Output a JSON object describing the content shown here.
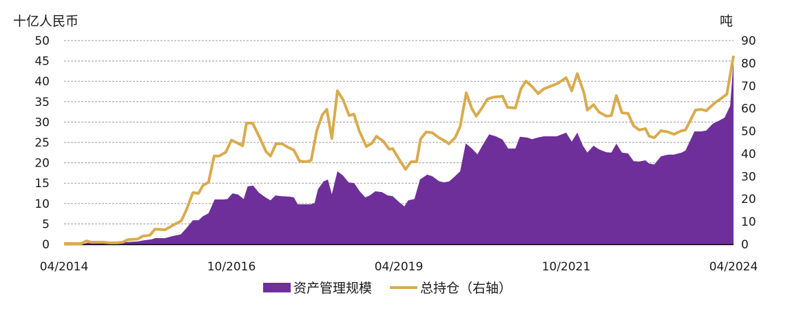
{
  "chart_data": {
    "type": "area+line",
    "title": "",
    "left_axis": {
      "unit_label": "十亿人民币",
      "ticks": [
        0,
        5,
        10,
        15,
        20,
        25,
        30,
        35,
        40,
        45,
        50
      ],
      "ylim": [
        0,
        50
      ]
    },
    "right_axis": {
      "unit_label": "吨",
      "ticks": [
        0,
        10,
        20,
        30,
        40,
        50,
        60,
        70,
        80,
        90
      ],
      "ylim": [
        0,
        90
      ]
    },
    "x_axis": {
      "tick_labels": [
        "04/2014",
        "10/2016",
        "04/2019",
        "10/2021",
        "04/2024"
      ],
      "tick_positions": [
        0,
        30,
        60,
        90,
        120
      ],
      "range": [
        0,
        120
      ]
    },
    "grid": "horizontal dashed",
    "legend": {
      "position": "bottom"
    },
    "series": [
      {
        "name": "资产管理规模",
        "type": "area",
        "axis": "left",
        "color": "#6E2F9B",
        "points": [
          [
            0,
            0
          ],
          [
            3.3,
            0
          ],
          [
            4.6,
            0.5
          ],
          [
            9.5,
            0.3
          ],
          [
            10.7,
            0.5
          ],
          [
            13.2,
            0.7
          ],
          [
            14.4,
            1.0
          ],
          [
            15.7,
            1.2
          ],
          [
            16.3,
            1.5
          ],
          [
            18.1,
            1.5
          ],
          [
            19.4,
            2.0
          ],
          [
            20.9,
            2.4
          ],
          [
            21.9,
            3.9
          ],
          [
            23.1,
            5.9
          ],
          [
            24.1,
            5.9
          ],
          [
            24.9,
            6.9
          ],
          [
            25.9,
            7.6
          ],
          [
            27.0,
            11.0
          ],
          [
            28.6,
            11.0
          ],
          [
            29.3,
            11.1
          ],
          [
            30.2,
            12.5
          ],
          [
            31.2,
            12.2
          ],
          [
            32.2,
            11.1
          ],
          [
            32.9,
            14.2
          ],
          [
            33.9,
            14.4
          ],
          [
            34.9,
            12.7
          ],
          [
            35.9,
            11.7
          ],
          [
            37.0,
            10.8
          ],
          [
            37.9,
            12.0
          ],
          [
            38.9,
            11.8
          ],
          [
            40.4,
            11.7
          ],
          [
            41.2,
            11.5
          ],
          [
            41.9,
            9.8
          ],
          [
            42.8,
            9.8
          ],
          [
            44.1,
            9.8
          ],
          [
            44.9,
            10.1
          ],
          [
            45.5,
            13.5
          ],
          [
            46.5,
            15.4
          ],
          [
            47.3,
            15.9
          ],
          [
            48.0,
            12.3
          ],
          [
            49.0,
            17.9
          ],
          [
            50.0,
            16.9
          ],
          [
            51.0,
            15.2
          ],
          [
            52.0,
            15.0
          ],
          [
            53.0,
            13.0
          ],
          [
            54.0,
            11.5
          ],
          [
            54.8,
            12.0
          ],
          [
            55.8,
            13.0
          ],
          [
            57.0,
            12.8
          ],
          [
            58.0,
            12.0
          ],
          [
            58.9,
            11.8
          ],
          [
            60.1,
            10.3
          ],
          [
            61.0,
            9.3
          ],
          [
            61.7,
            10.8
          ],
          [
            62.8,
            11.1
          ],
          [
            63.8,
            15.9
          ],
          [
            65.1,
            17.1
          ],
          [
            66.0,
            16.7
          ],
          [
            67.2,
            15.5
          ],
          [
            68.1,
            15.2
          ],
          [
            69.0,
            15.4
          ],
          [
            70.0,
            16.6
          ],
          [
            71.0,
            17.9
          ],
          [
            72.0,
            24.8
          ],
          [
            73.1,
            23.5
          ],
          [
            74.1,
            22.1
          ],
          [
            75.1,
            24.5
          ],
          [
            76.2,
            27.0
          ],
          [
            77.4,
            26.5
          ],
          [
            78.6,
            25.7
          ],
          [
            79.6,
            23.5
          ],
          [
            80.9,
            23.5
          ],
          [
            81.7,
            26.4
          ],
          [
            83.0,
            26.2
          ],
          [
            83.9,
            25.8
          ],
          [
            84.9,
            26.2
          ],
          [
            86.0,
            26.5
          ],
          [
            87.3,
            26.5
          ],
          [
            88.3,
            26.5
          ],
          [
            90.0,
            27.4
          ],
          [
            91.0,
            25.2
          ],
          [
            92.0,
            27.4
          ],
          [
            93.0,
            24.2
          ],
          [
            93.8,
            22.5
          ],
          [
            94.9,
            24.2
          ],
          [
            95.9,
            23.3
          ],
          [
            97.2,
            22.6
          ],
          [
            98.1,
            22.5
          ],
          [
            99.0,
            24.7
          ],
          [
            100.0,
            22.5
          ],
          [
            101.1,
            22.3
          ],
          [
            102.1,
            20.4
          ],
          [
            103.1,
            20.3
          ],
          [
            104.2,
            20.6
          ],
          [
            104.9,
            19.8
          ],
          [
            105.8,
            19.6
          ],
          [
            107.0,
            21.6
          ],
          [
            108.3,
            22.0
          ],
          [
            109.3,
            22.0
          ],
          [
            110.7,
            22.5
          ],
          [
            111.4,
            23.0
          ],
          [
            113.0,
            27.7
          ],
          [
            114.2,
            27.7
          ],
          [
            115.1,
            27.9
          ],
          [
            116.3,
            29.6
          ],
          [
            117.5,
            30.4
          ],
          [
            118.4,
            31.1
          ],
          [
            119.4,
            34.0
          ],
          [
            120,
            45.1
          ]
        ]
      },
      {
        "name": "总持仓（右轴）",
        "type": "line",
        "axis": "right",
        "color": "#D9AB4E",
        "points": [
          [
            0,
            0.3
          ],
          [
            3.1,
            0.3
          ],
          [
            4.0,
            1.5
          ],
          [
            4.9,
            0.9
          ],
          [
            7.0,
            0.9
          ],
          [
            8.2,
            0.6
          ],
          [
            9.5,
            0.6
          ],
          [
            10.5,
            0.9
          ],
          [
            11.4,
            2.0
          ],
          [
            13.2,
            2.3
          ],
          [
            14.1,
            3.6
          ],
          [
            15.4,
            4.0
          ],
          [
            16.3,
            6.7
          ],
          [
            18.1,
            6.4
          ],
          [
            19.8,
            8.8
          ],
          [
            21.0,
            10.3
          ],
          [
            21.9,
            15.0
          ],
          [
            23.1,
            22.8
          ],
          [
            24.1,
            22.5
          ],
          [
            24.9,
            26.0
          ],
          [
            25.9,
            27.4
          ],
          [
            26.9,
            39.0
          ],
          [
            27.8,
            39.0
          ],
          [
            29.0,
            40.7
          ],
          [
            30.0,
            46.0
          ],
          [
            31.1,
            44.7
          ],
          [
            32.0,
            43.5
          ],
          [
            32.7,
            53.5
          ],
          [
            33.8,
            53.5
          ],
          [
            35.2,
            46.5
          ],
          [
            36.2,
            41.0
          ],
          [
            37.0,
            39.0
          ],
          [
            38.0,
            44.4
          ],
          [
            39.1,
            44.4
          ],
          [
            40.1,
            42.9
          ],
          [
            41.2,
            41.6
          ],
          [
            42.2,
            36.8
          ],
          [
            43.5,
            36.5
          ],
          [
            44.3,
            37.1
          ],
          [
            45.3,
            50.2
          ],
          [
            46.3,
            57.2
          ],
          [
            47.1,
            59.6
          ],
          [
            48.0,
            46.8
          ],
          [
            49.0,
            67.8
          ],
          [
            50.0,
            63.9
          ],
          [
            51.1,
            56.9
          ],
          [
            51.96,
            57.5
          ],
          [
            52.9,
            50.2
          ],
          [
            54.2,
            43.2
          ],
          [
            55.2,
            44.7
          ],
          [
            56.0,
            47.7
          ],
          [
            57.2,
            45.6
          ],
          [
            58.3,
            42.0
          ],
          [
            58.9,
            42.3
          ],
          [
            60.1,
            37.4
          ],
          [
            61.2,
            33.1
          ],
          [
            62.2,
            36.5
          ],
          [
            63.2,
            36.5
          ],
          [
            63.9,
            46.5
          ],
          [
            64.9,
            49.6
          ],
          [
            66.0,
            49.3
          ],
          [
            67.2,
            47.1
          ],
          [
            68.3,
            45.6
          ],
          [
            69.0,
            44.4
          ],
          [
            70.1,
            47.1
          ],
          [
            71.0,
            52.0
          ],
          [
            72.1,
            66.9
          ],
          [
            73.1,
            59.9
          ],
          [
            73.9,
            56.6
          ],
          [
            74.9,
            60.2
          ],
          [
            75.9,
            64.2
          ],
          [
            77.0,
            65.0
          ],
          [
            78.6,
            65.4
          ],
          [
            79.5,
            60.5
          ],
          [
            80.9,
            60.2
          ],
          [
            81.9,
            68.7
          ],
          [
            82.8,
            72.1
          ],
          [
            83.8,
            69.9
          ],
          [
            85.0,
            66.6
          ],
          [
            86.0,
            68.7
          ],
          [
            87.3,
            69.9
          ],
          [
            88.5,
            71.1
          ],
          [
            90.0,
            73.6
          ],
          [
            91.0,
            67.8
          ],
          [
            92.0,
            75.4
          ],
          [
            93.2,
            66.9
          ],
          [
            93.8,
            59.3
          ],
          [
            94.9,
            61.7
          ],
          [
            95.9,
            58.4
          ],
          [
            97.2,
            56.6
          ],
          [
            98.1,
            56.9
          ],
          [
            99.0,
            65.7
          ],
          [
            100.0,
            58.1
          ],
          [
            101.1,
            57.8
          ],
          [
            102.1,
            52.3
          ],
          [
            103.1,
            50.5
          ],
          [
            104.2,
            51.1
          ],
          [
            104.9,
            47.7
          ],
          [
            105.8,
            47.1
          ],
          [
            107.0,
            50.2
          ],
          [
            108.3,
            49.6
          ],
          [
            109.3,
            48.6
          ],
          [
            110.7,
            50.2
          ],
          [
            111.4,
            50.5
          ],
          [
            113.2,
            59.3
          ],
          [
            114.2,
            59.6
          ],
          [
            115.1,
            59.0
          ],
          [
            116.7,
            62.6
          ],
          [
            117.5,
            63.9
          ],
          [
            118.8,
            66.3
          ],
          [
            120,
            83.3
          ]
        ]
      }
    ]
  },
  "labels": {
    "left_unit": "十亿人民币",
    "right_unit": "吨",
    "legend_area": "资产管理规模",
    "legend_line": "总持仓（右轴）"
  },
  "colors": {
    "area": "#6E2F9B",
    "line": "#D9AB4E",
    "grid": "#9A9A9A",
    "axis": "#000000"
  }
}
